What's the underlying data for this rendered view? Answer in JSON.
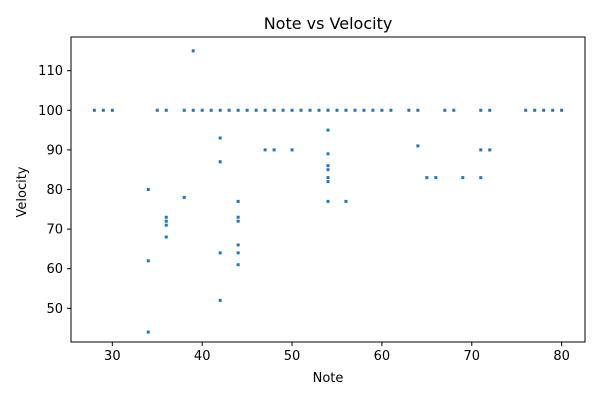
{
  "chart_data": {
    "type": "scatter",
    "title": "Note vs Velocity",
    "xlabel": "Note",
    "ylabel": "Velocity",
    "xlim": [
      25.4,
      82.6
    ],
    "ylim": [
      41.5,
      118.5
    ],
    "xticks": [
      30,
      40,
      50,
      60,
      70,
      80
    ],
    "yticks": [
      50,
      60,
      70,
      80,
      90,
      100,
      110
    ],
    "grid": false,
    "point_color": "#1f77b4",
    "points": [
      {
        "x": 28,
        "y": 100
      },
      {
        "x": 29,
        "y": 100
      },
      {
        "x": 30,
        "y": 100
      },
      {
        "x": 35,
        "y": 100
      },
      {
        "x": 36,
        "y": 100
      },
      {
        "x": 38,
        "y": 100
      },
      {
        "x": 39,
        "y": 100
      },
      {
        "x": 40,
        "y": 100
      },
      {
        "x": 41,
        "y": 100
      },
      {
        "x": 42,
        "y": 100
      },
      {
        "x": 43,
        "y": 100
      },
      {
        "x": 44,
        "y": 100
      },
      {
        "x": 45,
        "y": 100
      },
      {
        "x": 46,
        "y": 100
      },
      {
        "x": 47,
        "y": 100
      },
      {
        "x": 48,
        "y": 100
      },
      {
        "x": 49,
        "y": 100
      },
      {
        "x": 50,
        "y": 100
      },
      {
        "x": 51,
        "y": 100
      },
      {
        "x": 52,
        "y": 100
      },
      {
        "x": 53,
        "y": 100
      },
      {
        "x": 54,
        "y": 100
      },
      {
        "x": 55,
        "y": 100
      },
      {
        "x": 56,
        "y": 100
      },
      {
        "x": 57,
        "y": 100
      },
      {
        "x": 58,
        "y": 100
      },
      {
        "x": 59,
        "y": 100
      },
      {
        "x": 60,
        "y": 100
      },
      {
        "x": 61,
        "y": 100
      },
      {
        "x": 63,
        "y": 100
      },
      {
        "x": 64,
        "y": 100
      },
      {
        "x": 67,
        "y": 100
      },
      {
        "x": 68,
        "y": 100
      },
      {
        "x": 71,
        "y": 100
      },
      {
        "x": 72,
        "y": 100
      },
      {
        "x": 76,
        "y": 100
      },
      {
        "x": 77,
        "y": 100
      },
      {
        "x": 78,
        "y": 100
      },
      {
        "x": 79,
        "y": 100
      },
      {
        "x": 80,
        "y": 100
      },
      {
        "x": 39,
        "y": 115
      },
      {
        "x": 42,
        "y": 93
      },
      {
        "x": 42,
        "y": 87
      },
      {
        "x": 42,
        "y": 64
      },
      {
        "x": 42,
        "y": 52
      },
      {
        "x": 34,
        "y": 80
      },
      {
        "x": 34,
        "y": 62
      },
      {
        "x": 34,
        "y": 44
      },
      {
        "x": 36,
        "y": 73
      },
      {
        "x": 36,
        "y": 72
      },
      {
        "x": 36,
        "y": 71
      },
      {
        "x": 36,
        "y": 68
      },
      {
        "x": 38,
        "y": 78
      },
      {
        "x": 44,
        "y": 77
      },
      {
        "x": 44,
        "y": 73
      },
      {
        "x": 44,
        "y": 72
      },
      {
        "x": 44,
        "y": 66
      },
      {
        "x": 44,
        "y": 64
      },
      {
        "x": 44,
        "y": 61
      },
      {
        "x": 47,
        "y": 90
      },
      {
        "x": 48,
        "y": 90
      },
      {
        "x": 50,
        "y": 90
      },
      {
        "x": 54,
        "y": 95
      },
      {
        "x": 54,
        "y": 89
      },
      {
        "x": 54,
        "y": 86
      },
      {
        "x": 54,
        "y": 85
      },
      {
        "x": 54,
        "y": 83
      },
      {
        "x": 54,
        "y": 82
      },
      {
        "x": 54,
        "y": 77
      },
      {
        "x": 56,
        "y": 77
      },
      {
        "x": 64,
        "y": 91
      },
      {
        "x": 65,
        "y": 83
      },
      {
        "x": 66,
        "y": 83
      },
      {
        "x": 69,
        "y": 83
      },
      {
        "x": 71,
        "y": 83
      },
      {
        "x": 71,
        "y": 90
      },
      {
        "x": 72,
        "y": 90
      }
    ]
  }
}
